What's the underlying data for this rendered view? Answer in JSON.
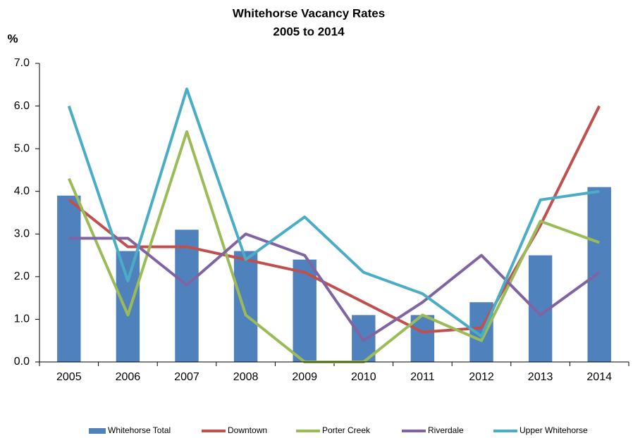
{
  "chart_data": {
    "type": "bar",
    "title": "Whitehorse Vacancy Rates",
    "subtitle": "2005 to 2014",
    "y_label": "%",
    "categories": [
      "2005",
      "2006",
      "2007",
      "2008",
      "2009",
      "2010",
      "2011",
      "2012",
      "2013",
      "2014"
    ],
    "series": [
      {
        "name": "Whitehorse Total",
        "type": "bar",
        "color": "#4f81bd",
        "values": [
          3.9,
          2.6,
          3.1,
          2.6,
          2.4,
          1.1,
          1.1,
          1.4,
          2.5,
          4.1
        ]
      },
      {
        "name": "Downtown",
        "type": "line",
        "color": "#c0504d",
        "values": [
          3.8,
          2.7,
          2.7,
          2.4,
          2.1,
          1.4,
          0.7,
          0.8,
          3.2,
          6.0
        ]
      },
      {
        "name": "Porter Creek",
        "type": "line",
        "color": "#9bbb59",
        "values": [
          4.3,
          1.1,
          5.4,
          1.1,
          0.0,
          0.0,
          1.1,
          0.5,
          3.3,
          2.8
        ]
      },
      {
        "name": "Riverdale",
        "type": "line",
        "color": "#8064a2",
        "values": [
          2.9,
          2.9,
          1.8,
          3.0,
          2.5,
          0.5,
          1.4,
          2.5,
          1.1,
          2.1
        ]
      },
      {
        "name": "Upper Whitehorse",
        "type": "line",
        "color": "#4bacc6",
        "values": [
          6.0,
          1.9,
          6.4,
          2.4,
          3.4,
          2.1,
          1.6,
          0.6,
          3.8,
          4.0
        ]
      }
    ],
    "ylim": [
      0,
      7
    ],
    "yticks": [
      {
        "value": 0,
        "label": "0.0"
      },
      {
        "value": 1,
        "label": "1.0"
      },
      {
        "value": 2,
        "label": "2.0"
      },
      {
        "value": 3,
        "label": "3.0"
      },
      {
        "value": 4,
        "label": "4.0"
      },
      {
        "value": 5,
        "label": "5.0"
      },
      {
        "value": 6,
        "label": "6.0"
      },
      {
        "value": 7,
        "label": "7.0"
      }
    ],
    "grid": false,
    "legend": "bottom"
  }
}
